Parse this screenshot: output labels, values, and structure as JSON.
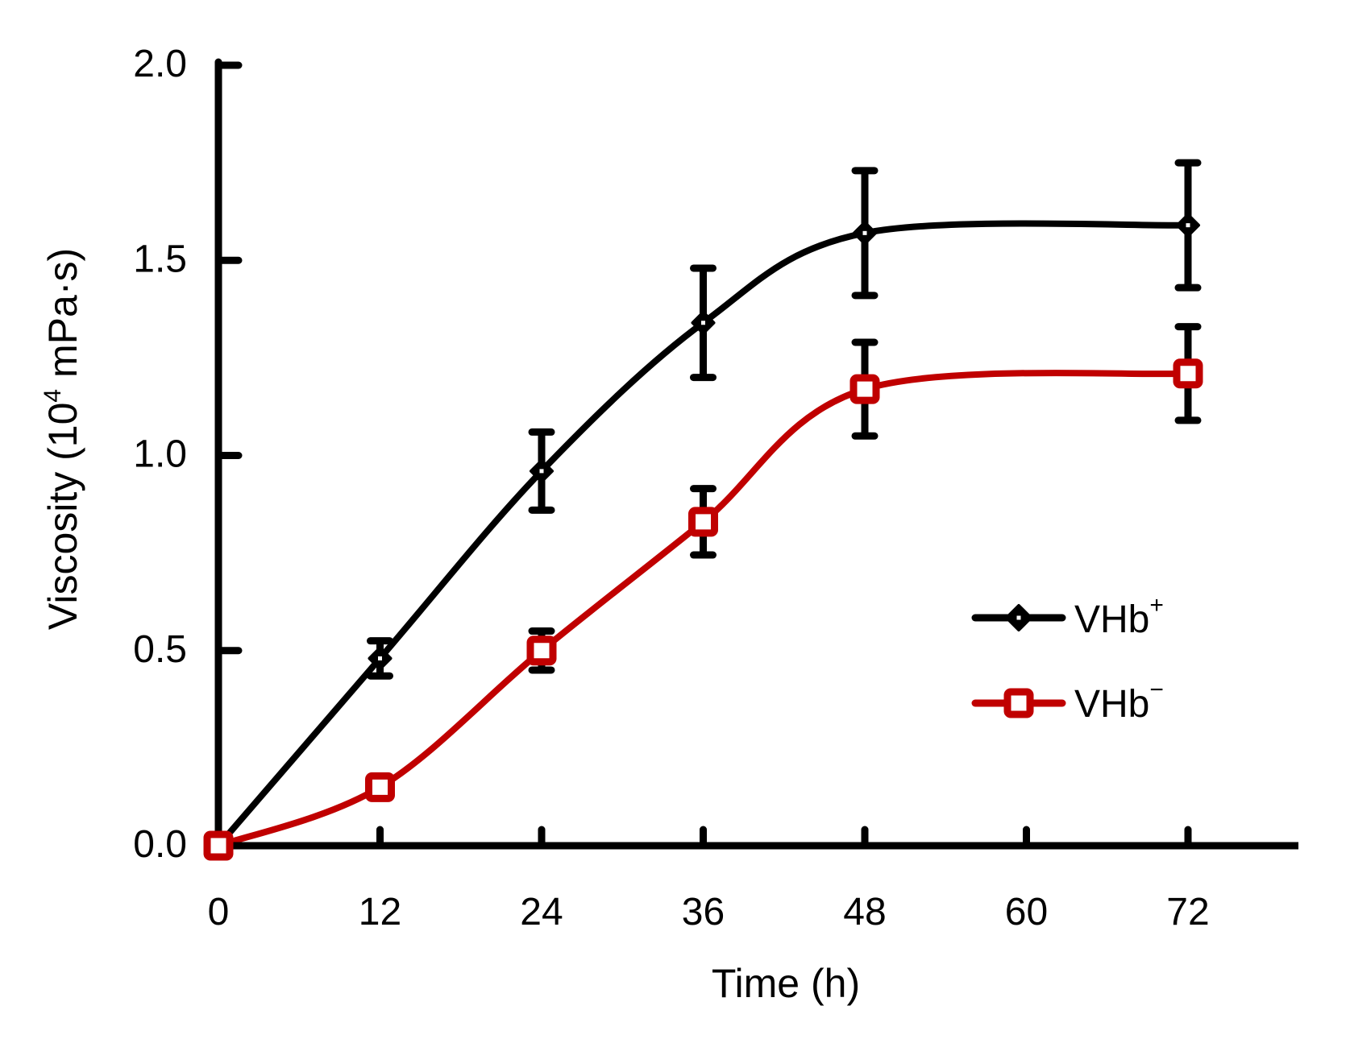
{
  "chart_data": {
    "type": "line",
    "title": "",
    "xlabel": "Time (h)",
    "ylabel_main": "Viscosity (10",
    "ylabel_sup": "4",
    "ylabel_tail": " mPa·s)",
    "ylabel": "Viscosity (10^4 mPa·s)",
    "x": [
      0,
      12,
      24,
      36,
      48,
      72
    ],
    "xticks": [
      0,
      12,
      24,
      36,
      48,
      60,
      72
    ],
    "xtick_labels": [
      "0",
      "12",
      "24",
      "36",
      "48",
      "60",
      "72"
    ],
    "yticks": [
      0.0,
      0.5,
      1.0,
      1.5,
      2.0
    ],
    "ytick_labels": [
      "0.0",
      "0.5",
      "1.0",
      "1.5",
      "2.0"
    ],
    "xlim": [
      0,
      81
    ],
    "ylim": [
      0,
      2.0
    ],
    "grid": false,
    "legend_position": "center-right",
    "series": [
      {
        "name": "VHb+",
        "label_base": "VHb",
        "label_sup": "+",
        "color": "#000000",
        "marker": "diamond",
        "values": [
          0.0,
          0.48,
          0.96,
          1.34,
          1.57,
          1.59
        ],
        "errors": [
          0.0,
          0.045,
          0.1,
          0.14,
          0.16,
          0.16
        ]
      },
      {
        "name": "VHb−",
        "label_base": "VHb",
        "label_sup": "−",
        "color": "#c00000",
        "marker": "square",
        "values": [
          0.0,
          0.15,
          0.5,
          0.83,
          1.17,
          1.21
        ],
        "errors": [
          0.0,
          0.012,
          0.05,
          0.085,
          0.12,
          0.12
        ]
      }
    ]
  }
}
